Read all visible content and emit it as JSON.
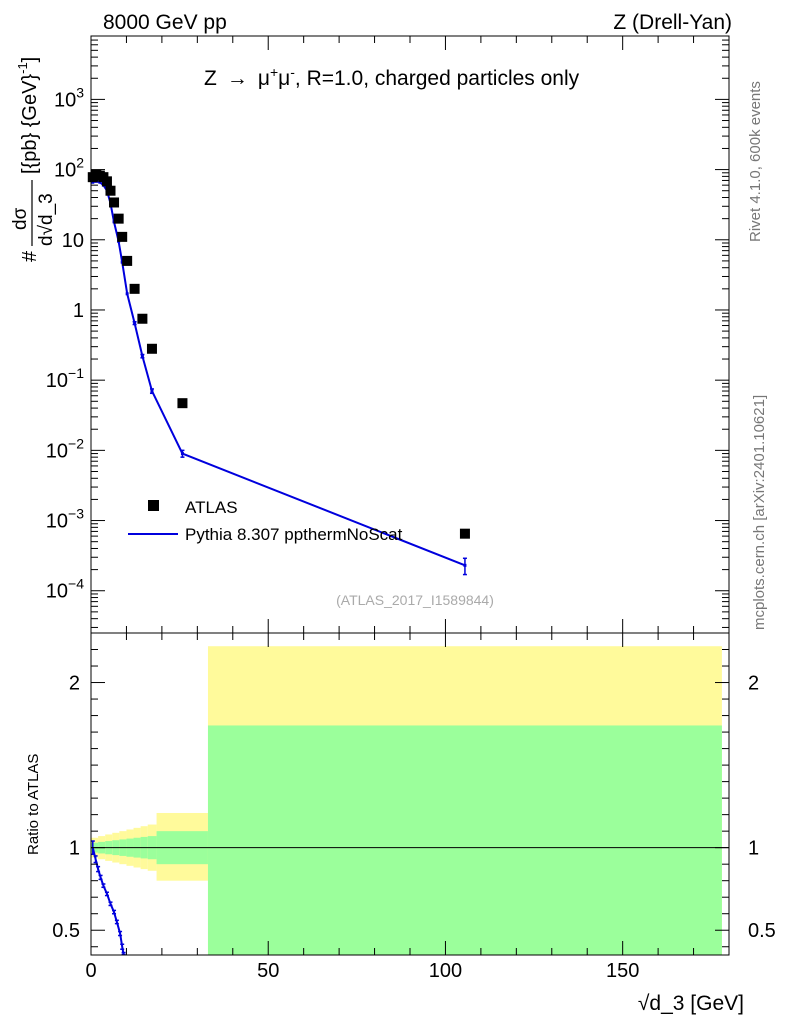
{
  "header": {
    "left": "8000 GeV pp",
    "right": "Z (Drell-Yan)"
  },
  "side": {
    "top": "Rivet 4.1.0,  600k events",
    "bottom": "mcplots.cern.ch [arXiv:2401.10621]"
  },
  "plot_title": {
    "prefix": "Z",
    "arrow": "→",
    "mu": "μ",
    "plus": "+",
    "minus": "-",
    "suffix": ", R=1.0, charged particles only"
  },
  "analysis_tag": "(ATLAS_2017_I1589844)",
  "ylabel_main": {
    "hash": "#",
    "num": "dσ",
    "den_d": "d",
    "den_sqrt": "√",
    "den_var": "d_3",
    "units": "[{pb} {GeV}",
    "units_sup": "-1",
    "units_close": "]"
  },
  "ylabel_ratio": "Ratio to ATLAS",
  "xlabel": {
    "sqrt": "√",
    "var": "d_3",
    "unit": " [GeV]"
  },
  "legend": {
    "data": "ATLAS",
    "mc": "Pythia 8.307 ppthermNoScat"
  },
  "colors": {
    "data": "#000000",
    "mc": "#0000dd",
    "band_stat": "#9bff9b",
    "band_total": "#fffa9b",
    "text_gray": "#777777"
  },
  "chart_data": [
    {
      "type": "scatter",
      "name": "main",
      "yscale": "log",
      "xlim": [
        0,
        180
      ],
      "ylim": [
        2.5e-05,
        8000
      ],
      "xticks_major": [
        0,
        50,
        100,
        150
      ],
      "xticks_minor_step": 10,
      "yticks_decades": [
        -4,
        -3,
        -2,
        -1,
        0,
        1,
        2,
        3
      ],
      "ytick_labels": [
        {
          "exp": -4,
          "base": "10",
          "sup": "−4"
        },
        {
          "exp": -3,
          "base": "10",
          "sup": "−3"
        },
        {
          "exp": -2,
          "base": "10",
          "sup": "−2"
        },
        {
          "exp": -1,
          "base": "10",
          "sup": "−1"
        },
        {
          "exp": 0,
          "base": "1",
          "sup": ""
        },
        {
          "exp": 1,
          "base": "10",
          "sup": ""
        },
        {
          "exp": 2,
          "base": "10",
          "sup": "2"
        },
        {
          "exp": 3,
          "base": "10",
          "sup": "3"
        }
      ],
      "data_points": [
        {
          "x": 0.5,
          "y": 78
        },
        {
          "x": 1.5,
          "y": 85
        },
        {
          "x": 2.5,
          "y": 82
        },
        {
          "x": 3.5,
          "y": 78
        },
        {
          "x": 4.5,
          "y": 68
        },
        {
          "x": 5.5,
          "y": 50
        },
        {
          "x": 6.5,
          "y": 34
        },
        {
          "x": 7.8,
          "y": 20
        },
        {
          "x": 8.8,
          "y": 11
        },
        {
          "x": 10.2,
          "y": 5.0
        },
        {
          "x": 12.3,
          "y": 2.0
        },
        {
          "x": 14.5,
          "y": 0.75
        },
        {
          "x": 17.2,
          "y": 0.28
        },
        {
          "x": 25.8,
          "y": 0.047
        },
        {
          "x": 105.5,
          "y": 0.00065
        }
      ],
      "mc_points": [
        {
          "x": 0.5,
          "y": 66,
          "err": 0
        },
        {
          "x": 1.5,
          "y": 68,
          "err": 0
        },
        {
          "x": 2.5,
          "y": 66,
          "err": 0
        },
        {
          "x": 3.5,
          "y": 60,
          "err": 0
        },
        {
          "x": 4.5,
          "y": 50,
          "err": 0
        },
        {
          "x": 5.5,
          "y": 33,
          "err": 0
        },
        {
          "x": 6.5,
          "y": 18,
          "err": 0
        },
        {
          "x": 7.8,
          "y": 9.5,
          "err": 0
        },
        {
          "x": 8.8,
          "y": 4.8,
          "err": 0
        },
        {
          "x": 10.2,
          "y": 1.7,
          "err": 0
        },
        {
          "x": 12.3,
          "y": 0.65,
          "err": 0.03
        },
        {
          "x": 14.5,
          "y": 0.22,
          "err": 0.012
        },
        {
          "x": 17.2,
          "y": 0.07,
          "err": 0.005
        },
        {
          "x": 25.8,
          "y": 0.009,
          "err": 0.001
        },
        {
          "x": 105.5,
          "y": 0.00023,
          "err": 6e-05
        }
      ]
    },
    {
      "type": "area",
      "name": "ratio",
      "xlim": [
        0,
        180
      ],
      "ylim": [
        0.35,
        2.3
      ],
      "yticks": [
        0.5,
        1,
        2
      ],
      "ytick_labels": [
        "0.5",
        "1",
        "2"
      ],
      "reference_line": 1,
      "bands": [
        {
          "x0": 0,
          "x1": 2,
          "yellow": [
            0.94,
            1.06
          ],
          "green": [
            0.97,
            1.03
          ]
        },
        {
          "x0": 2,
          "x1": 4,
          "yellow": [
            0.93,
            1.07
          ],
          "green": [
            0.965,
            1.035
          ]
        },
        {
          "x0": 4,
          "x1": 6,
          "yellow": [
            0.92,
            1.08
          ],
          "green": [
            0.96,
            1.04
          ]
        },
        {
          "x0": 6,
          "x1": 8,
          "yellow": [
            0.91,
            1.09
          ],
          "green": [
            0.955,
            1.045
          ]
        },
        {
          "x0": 8,
          "x1": 10,
          "yellow": [
            0.9,
            1.1
          ],
          "green": [
            0.95,
            1.05
          ]
        },
        {
          "x0": 10,
          "x1": 12,
          "yellow": [
            0.89,
            1.11
          ],
          "green": [
            0.945,
            1.055
          ]
        },
        {
          "x0": 12,
          "x1": 14,
          "yellow": [
            0.88,
            1.12
          ],
          "green": [
            0.94,
            1.06
          ]
        },
        {
          "x0": 14,
          "x1": 16,
          "yellow": [
            0.87,
            1.13
          ],
          "green": [
            0.935,
            1.065
          ]
        },
        {
          "x0": 16,
          "x1": 18.5,
          "yellow": [
            0.86,
            1.14
          ],
          "green": [
            0.93,
            1.07
          ]
        },
        {
          "x0": 18.5,
          "x1": 33,
          "yellow": [
            0.8,
            1.21
          ],
          "green": [
            0.9,
            1.1
          ]
        },
        {
          "x0": 33,
          "x1": 178,
          "yellow": [
            0.0,
            2.22
          ],
          "green": [
            0.0,
            1.74
          ]
        }
      ],
      "mc_ratio": [
        {
          "x": 0.5,
          "y": 1.0,
          "err": 0.04
        },
        {
          "x": 1.3,
          "y": 0.93,
          "err": 0.02
        },
        {
          "x": 2.0,
          "y": 0.87,
          "err": 0.015
        },
        {
          "x": 2.7,
          "y": 0.82,
          "err": 0.012
        },
        {
          "x": 3.5,
          "y": 0.77,
          "err": 0.01
        },
        {
          "x": 4.5,
          "y": 0.72,
          "err": 0.01
        },
        {
          "x": 5.5,
          "y": 0.66,
          "err": 0.01
        },
        {
          "x": 6.5,
          "y": 0.61,
          "err": 0.01
        },
        {
          "x": 7.3,
          "y": 0.55,
          "err": 0.01
        },
        {
          "x": 8.2,
          "y": 0.48,
          "err": 0.012
        },
        {
          "x": 8.8,
          "y": 0.4,
          "err": 0.015
        },
        {
          "x": 9.2,
          "y": 0.35,
          "err": 0.015
        }
      ]
    }
  ]
}
